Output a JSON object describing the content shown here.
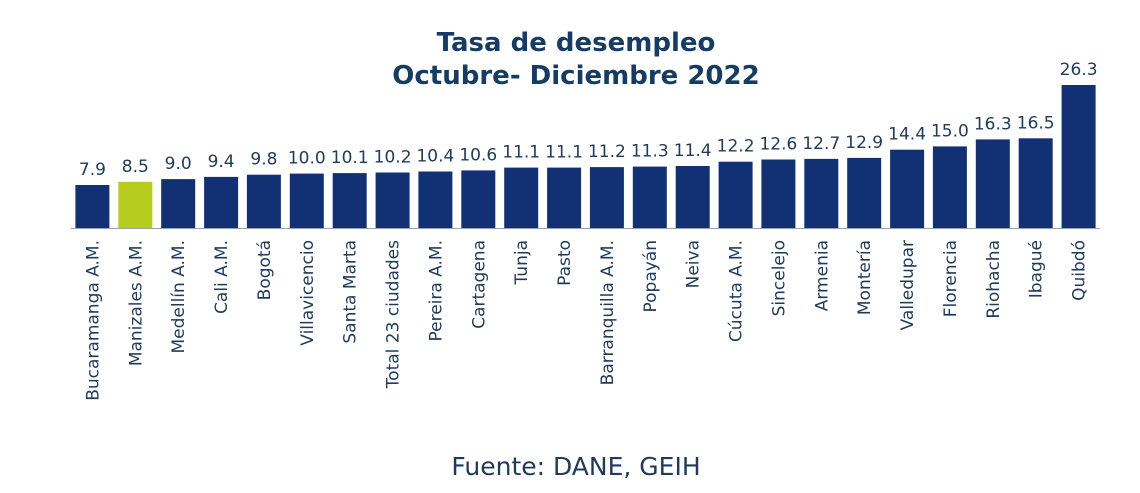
{
  "colors": {
    "bar": "#123175",
    "highlight": "#b6cc1e",
    "text": "#1f3a5c",
    "title": "#143c64",
    "axis": "#9aa3b0"
  },
  "source": "Fuente: DANE, GEIH",
  "chart_data": {
    "type": "bar",
    "title": "Tasa de desempleo",
    "subtitle": "Octubre- Diciembre 2022",
    "xlabel": "",
    "ylabel": "",
    "ylim": [
      0,
      26.3
    ],
    "grid": false,
    "legend": "none",
    "highlight_category": "Manizales A.M.",
    "categories": [
      "Bucaramanga A.M.",
      "Manizales A.M.",
      "Medellín A.M.",
      "Cali A.M.",
      "Bogotá",
      "Villavicencio",
      "Santa Marta",
      "Total 23 ciudades",
      "Pereira A.M.",
      "Cartagena",
      "Tunja",
      "Pasto",
      "Barranquilla A.M.",
      "Popayán",
      "Neiva",
      "Cúcuta A.M.",
      "Sincelejo",
      "Armenia",
      "Montería",
      "Valledupar",
      "Florencia",
      "Riohacha",
      "Ibagué",
      "Quibdó"
    ],
    "values": [
      7.9,
      8.5,
      9.0,
      9.4,
      9.8,
      10.0,
      10.1,
      10.2,
      10.4,
      10.6,
      11.1,
      11.1,
      11.2,
      11.3,
      11.4,
      12.2,
      12.6,
      12.7,
      12.9,
      14.4,
      15.0,
      16.3,
      16.5,
      26.3
    ],
    "value_labels": [
      "7.9",
      "8.5",
      "9.0",
      "9.4",
      "9.8",
      "10.0",
      "10.1",
      "10.2",
      "10.4",
      "10.6",
      "11.1",
      "11.1",
      "11.2",
      "11.3",
      "11.4",
      "12.2",
      "12.6",
      "12.7",
      "12.9",
      "14.4",
      "15.0",
      "16.3",
      "16.5",
      "26.3"
    ]
  }
}
